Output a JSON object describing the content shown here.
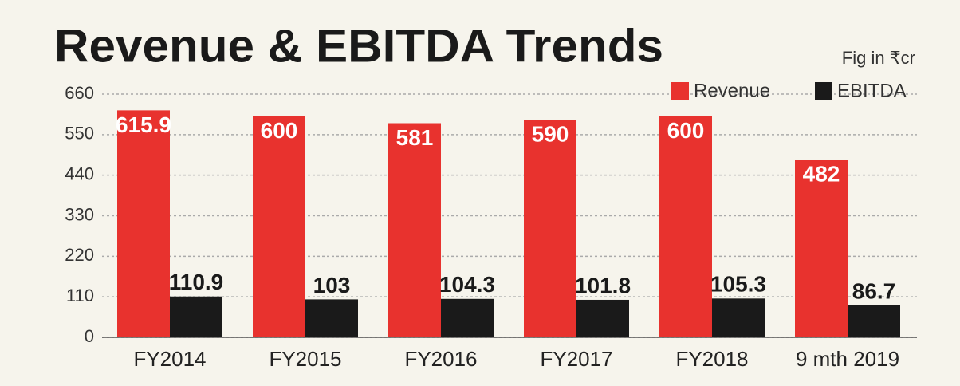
{
  "chart_data": {
    "type": "bar",
    "title": "Revenue & EBITDA Trends",
    "subtitle": "Fig in ₹cr",
    "categories": [
      "FY2014",
      "FY2015",
      "FY2016",
      "FY2017",
      "FY2018",
      "9 mth 2019"
    ],
    "series": [
      {
        "name": "Revenue",
        "color": "#e8322e",
        "values": [
          615.9,
          600,
          581,
          590,
          600,
          482
        ]
      },
      {
        "name": "EBITDA",
        "color": "#1a1a1a",
        "values": [
          110.9,
          103,
          104.3,
          101.8,
          105.3,
          86.7
        ]
      }
    ],
    "ylim": [
      0,
      660
    ],
    "yticks": [
      0,
      110,
      220,
      330,
      440,
      550,
      660
    ],
    "grid": true,
    "legend": "top-right"
  }
}
